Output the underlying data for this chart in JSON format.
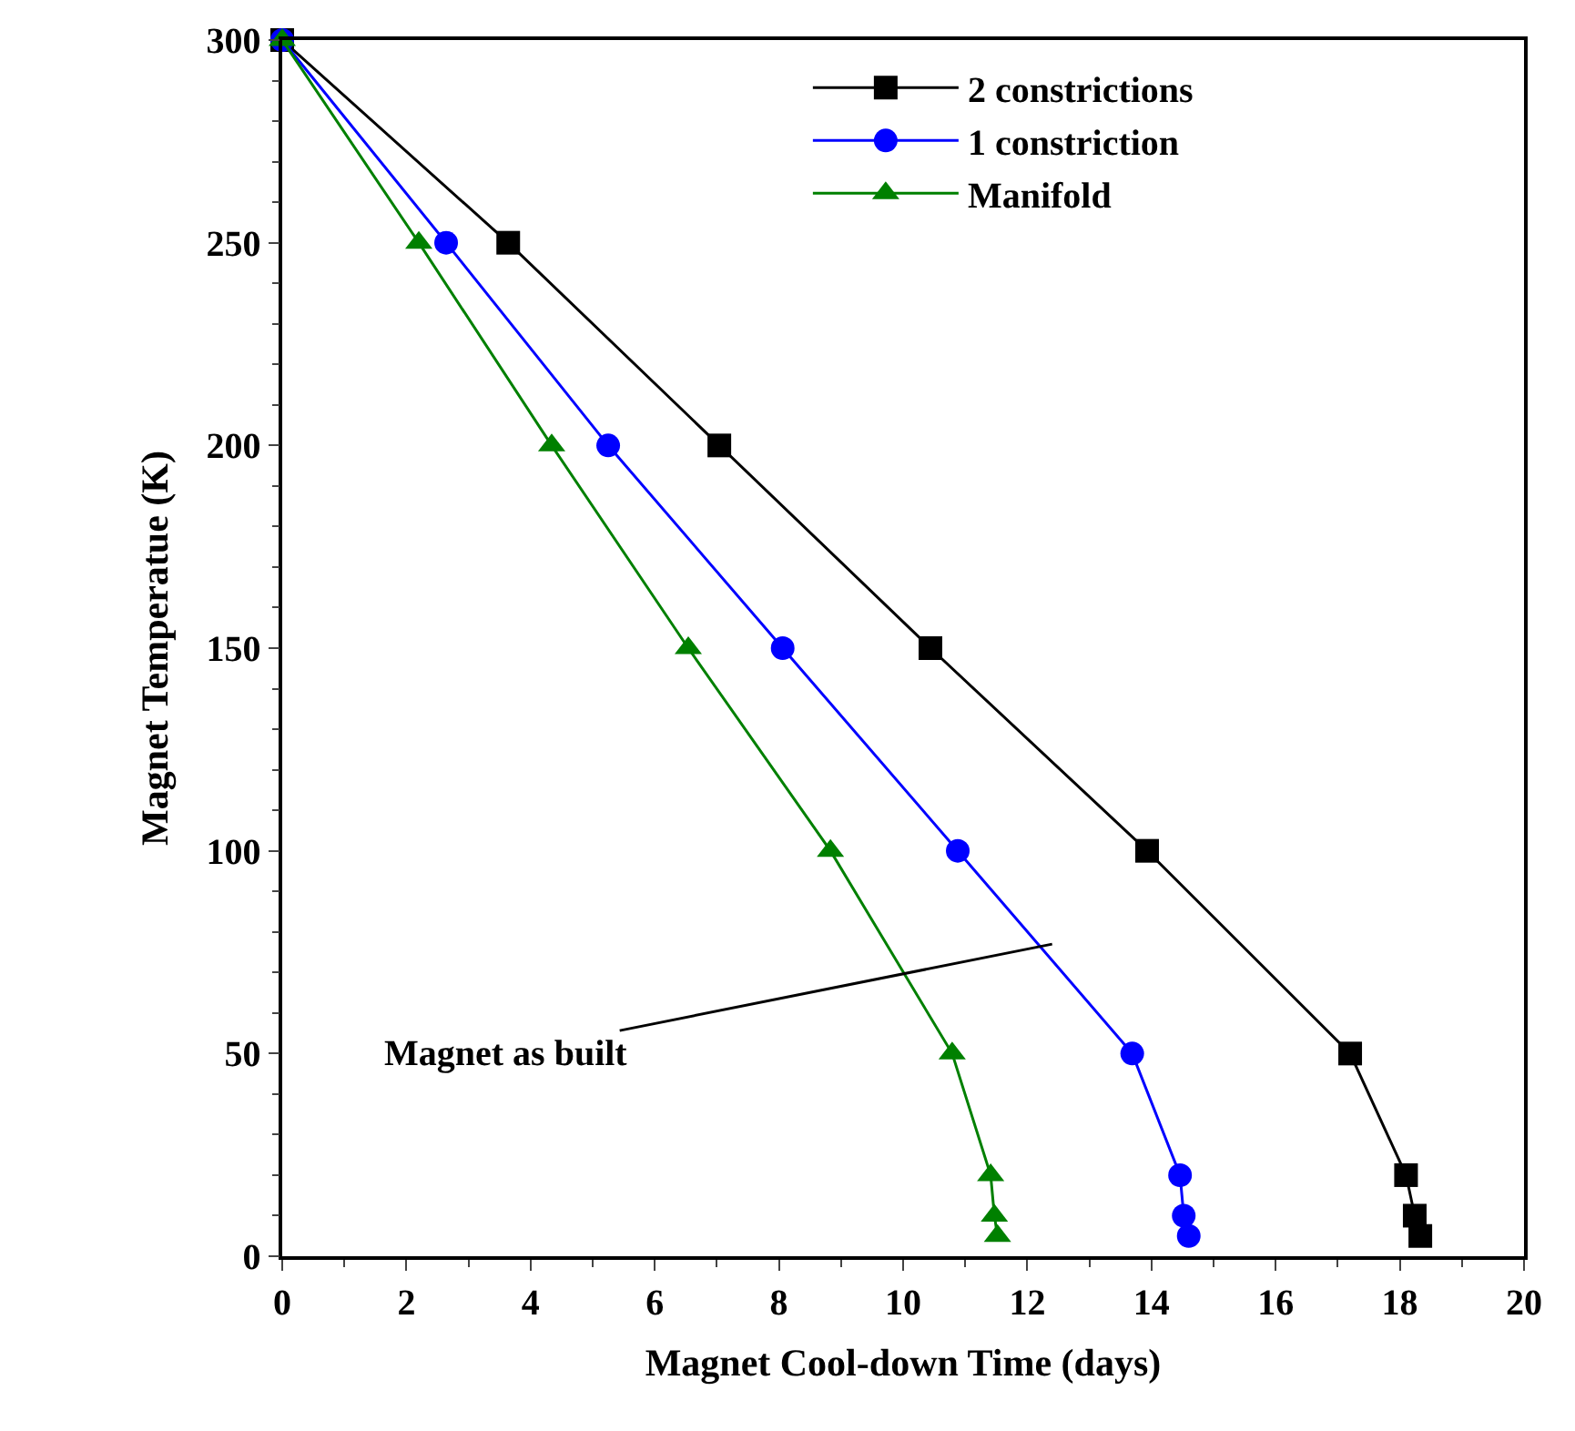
{
  "chart_data": {
    "type": "line",
    "xlabel": "Magnet Cool-down Time (days)",
    "ylabel": "Magnet Temperatue (K)",
    "xlim": [
      0,
      20
    ],
    "xticks": [
      0,
      2,
      4,
      6,
      8,
      10,
      12,
      14,
      16,
      18,
      20
    ],
    "ylim": [
      0,
      300
    ],
    "yticks": [
      0,
      50,
      100,
      150,
      200,
      250,
      300
    ],
    "legend": "top right",
    "line_style": "solid",
    "series": [
      {
        "name": "2 constrictions",
        "color": "#000000",
        "marker": "square",
        "x": [
          0,
          3.64,
          7.04,
          10.44,
          13.93,
          17.2,
          18.1,
          18.24,
          18.33
        ],
        "values": [
          300,
          250,
          200,
          150,
          100,
          50,
          20,
          10,
          5
        ]
      },
      {
        "name": "1 constriction",
        "color": "#0000ff",
        "marker": "circle",
        "x": [
          0,
          2.64,
          5.25,
          8.06,
          10.88,
          13.69,
          14.46,
          14.52,
          14.6
        ],
        "values": [
          300,
          250,
          200,
          150,
          100,
          50,
          20,
          10,
          5
        ]
      },
      {
        "name": "Manifold",
        "color": "#008000",
        "marker": "triangle",
        "x": [
          0,
          2.2,
          4.34,
          6.54,
          8.83,
          10.79,
          11.41,
          11.47,
          11.52
        ],
        "values": [
          300,
          250,
          200,
          150,
          100,
          50,
          20,
          10,
          5
        ]
      }
    ],
    "annotations": [
      {
        "text": "Magnet as built",
        "x": 12.4,
        "y": 77
      }
    ]
  }
}
